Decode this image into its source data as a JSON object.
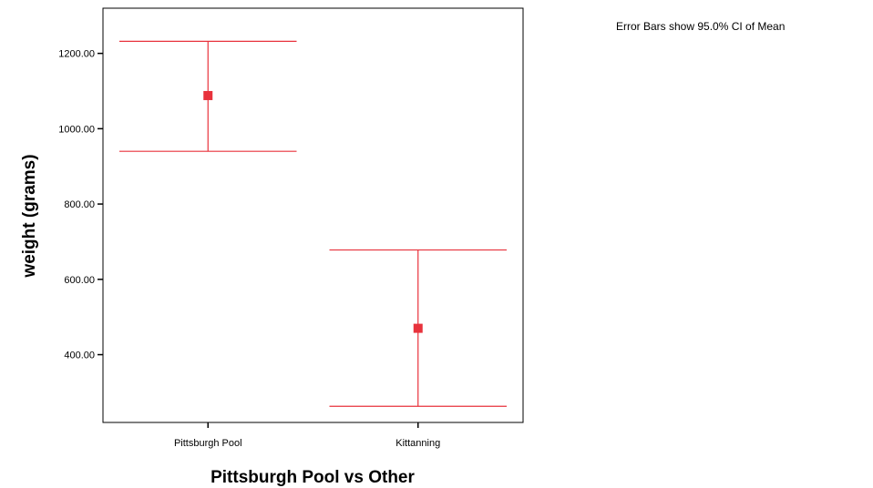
{
  "chart_data": {
    "type": "errorbar",
    "categories": [
      "Pittsburgh Pool",
      "Kittanning"
    ],
    "series": [
      {
        "mean": 1088,
        "ci_lower": 940,
        "ci_upper": 1232
      },
      {
        "mean": 470,
        "ci_lower": 263,
        "ci_upper": 678
      }
    ],
    "xlabel": "Pittsburgh Pool vs Other",
    "ylabel": "weight (grams)",
    "yticks": [
      400,
      600,
      800,
      1000,
      1200
    ],
    "ytick_labels": [
      "400.00",
      "600.00",
      "800.00",
      "1000.00",
      "1200.00"
    ],
    "ylim": [
      220,
      1320
    ],
    "grid": false,
    "annotation": "Error Bars show 95.0% CI of Mean",
    "color": "#e8323c"
  }
}
